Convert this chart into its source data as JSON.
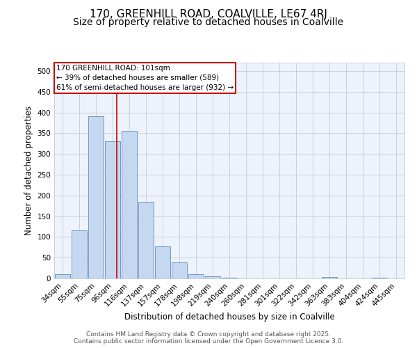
{
  "title_line1": "170, GREENHILL ROAD, COALVILLE, LE67 4RJ",
  "title_line2": "Size of property relative to detached houses in Coalville",
  "xlabel": "Distribution of detached houses by size in Coalville",
  "ylabel": "Number of detached properties",
  "bar_labels": [
    "34sqm",
    "55sqm",
    "75sqm",
    "96sqm",
    "116sqm",
    "137sqm",
    "157sqm",
    "178sqm",
    "198sqm",
    "219sqm",
    "240sqm",
    "260sqm",
    "281sqm",
    "301sqm",
    "322sqm",
    "342sqm",
    "363sqm",
    "383sqm",
    "404sqm",
    "424sqm",
    "445sqm"
  ],
  "bar_heights": [
    10,
    115,
    390,
    330,
    355,
    185,
    78,
    38,
    10,
    5,
    2,
    0,
    0,
    0,
    0,
    0,
    3,
    0,
    0,
    2,
    0
  ],
  "bar_color": "#c5d8f0",
  "bar_edge_color": "#5a8fc2",
  "grid_color": "#c8d0e0",
  "annotation_box_text": "170 GREENHILL ROAD: 101sqm\n← 39% of detached houses are smaller (589)\n61% of semi-detached houses are larger (932) →",
  "annotation_box_color": "#cc0000",
  "vline_x_index": 3.25,
  "ylim": [
    0,
    520
  ],
  "yticks": [
    0,
    50,
    100,
    150,
    200,
    250,
    300,
    350,
    400,
    450,
    500
  ],
  "footer_line1": "Contains HM Land Registry data © Crown copyright and database right 2025.",
  "footer_line2": "Contains public sector information licensed under the Open Government Licence 3.0.",
  "background_color": "#eef2fa",
  "fig_background": "#ffffff",
  "title_fontsize": 11,
  "subtitle_fontsize": 10,
  "axis_label_fontsize": 8.5,
  "tick_fontsize": 7.5,
  "footer_fontsize": 6.5,
  "annot_fontsize": 7.5
}
